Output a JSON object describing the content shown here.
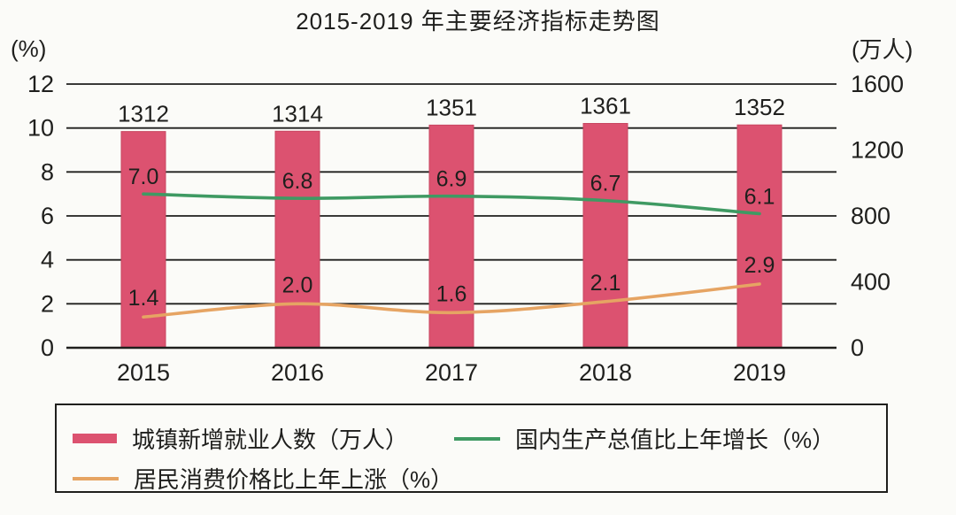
{
  "title": "2015-2019 年主要经济指标走势图",
  "chart_data": {
    "type": "bar",
    "subtype": "combo-bar-line",
    "title": "2015-2019 年主要经济指标走势图",
    "categories": [
      "2015",
      "2016",
      "2017",
      "2018",
      "2019"
    ],
    "series": [
      {
        "name": "城镇新增就业人数（万人）",
        "kind": "bar",
        "axis": "right",
        "color": "#dc5270",
        "values": [
          1312,
          1314,
          1351,
          1361,
          1352
        ],
        "labels": [
          "1312",
          "1314",
          "1351",
          "1361",
          "1352"
        ]
      },
      {
        "name": "国内生产总值比上年增长（%）",
        "kind": "line",
        "axis": "left",
        "color": "#3f9a63",
        "values": [
          7.0,
          6.8,
          6.9,
          6.7,
          6.1
        ],
        "labels": [
          "7.0",
          "6.8",
          "6.9",
          "6.7",
          "6.1"
        ]
      },
      {
        "name": "居民消费价格比上年上涨（%）",
        "kind": "line",
        "axis": "left",
        "color": "#e6a463",
        "values": [
          1.4,
          2.0,
          1.6,
          2.1,
          2.9
        ],
        "labels": [
          "1.4",
          "2.0",
          "1.6",
          "2.1",
          "2.9"
        ]
      }
    ],
    "left_axis": {
      "unit": "(%)",
      "ticks": [
        0,
        2,
        4,
        6,
        8,
        10,
        12
      ],
      "min": 0,
      "max": 12
    },
    "right_axis": {
      "unit": "(万人)",
      "ticks": [
        0,
        400,
        800,
        1200,
        1600
      ],
      "min": 0,
      "max": 1600
    },
    "grid": "horizontal",
    "legend_position": "bottom-box",
    "ink_color": "#1f1f1d"
  }
}
